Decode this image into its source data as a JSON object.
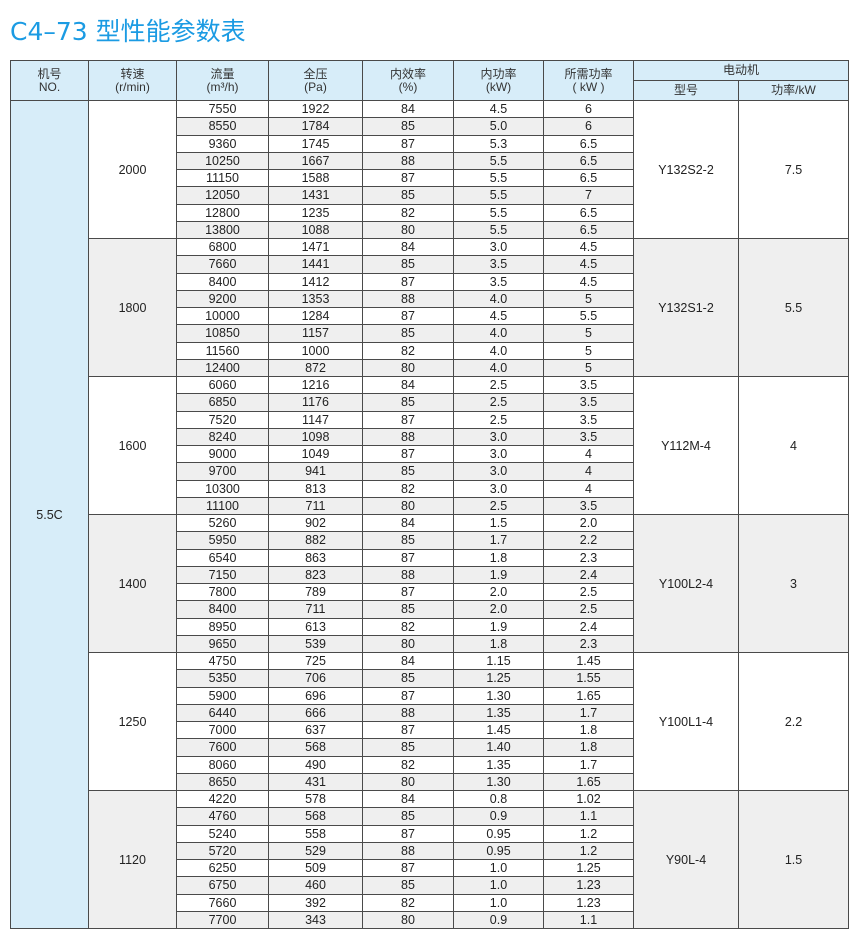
{
  "title": "C4–73 型性能参数表",
  "headers": {
    "no": [
      "机号",
      "NO."
    ],
    "speed": [
      "转速",
      "(r/min)"
    ],
    "flow": [
      "流量",
      "(m³/h)"
    ],
    "pressure": [
      "全压",
      "(Pa)"
    ],
    "efficiency": [
      "内效率",
      "(%)"
    ],
    "internal_power": [
      "内功率",
      "(kW)"
    ],
    "required_power": [
      "所需功率",
      "( kW )"
    ],
    "motor": "电动机",
    "motor_model": "型号",
    "motor_power": "功率/kW"
  },
  "machine_no": "5.5C",
  "groups": [
    {
      "speed": "2000",
      "motor_model": "Y132S2-2",
      "motor_power": "7.5",
      "rows": [
        [
          "7550",
          "1922",
          "84",
          "4.5",
          "6"
        ],
        [
          "8550",
          "1784",
          "85",
          "5.0",
          "6"
        ],
        [
          "9360",
          "1745",
          "87",
          "5.3",
          "6.5"
        ],
        [
          "10250",
          "1667",
          "88",
          "5.5",
          "6.5"
        ],
        [
          "11150",
          "1588",
          "87",
          "5.5",
          "6.5"
        ],
        [
          "12050",
          "1431",
          "85",
          "5.5",
          "7"
        ],
        [
          "12800",
          "1235",
          "82",
          "5.5",
          "6.5"
        ],
        [
          "13800",
          "1088",
          "80",
          "5.5",
          "6.5"
        ]
      ]
    },
    {
      "speed": "1800",
      "motor_model": "Y132S1-2",
      "motor_power": "5.5",
      "rows": [
        [
          "6800",
          "1471",
          "84",
          "3.0",
          "4.5"
        ],
        [
          "7660",
          "1441",
          "85",
          "3.5",
          "4.5"
        ],
        [
          "8400",
          "1412",
          "87",
          "3.5",
          "4.5"
        ],
        [
          "9200",
          "1353",
          "88",
          "4.0",
          "5"
        ],
        [
          "10000",
          "1284",
          "87",
          "4.5",
          "5.5"
        ],
        [
          "10850",
          "1157",
          "85",
          "4.0",
          "5"
        ],
        [
          "11560",
          "1000",
          "82",
          "4.0",
          "5"
        ],
        [
          "12400",
          "872",
          "80",
          "4.0",
          "5"
        ]
      ]
    },
    {
      "speed": "1600",
      "motor_model": "Y112M-4",
      "motor_power": "4",
      "rows": [
        [
          "6060",
          "1216",
          "84",
          "2.5",
          "3.5"
        ],
        [
          "6850",
          "1176",
          "85",
          "2.5",
          "3.5"
        ],
        [
          "7520",
          "1147",
          "87",
          "2.5",
          "3.5"
        ],
        [
          "8240",
          "1098",
          "88",
          "3.0",
          "3.5"
        ],
        [
          "9000",
          "1049",
          "87",
          "3.0",
          "4"
        ],
        [
          "9700",
          "941",
          "85",
          "3.0",
          "4"
        ],
        [
          "10300",
          "813",
          "82",
          "3.0",
          "4"
        ],
        [
          "11100",
          "711",
          "80",
          "2.5",
          "3.5"
        ]
      ]
    },
    {
      "speed": "1400",
      "motor_model": "Y100L2-4",
      "motor_power": "3",
      "rows": [
        [
          "5260",
          "902",
          "84",
          "1.5",
          "2.0"
        ],
        [
          "5950",
          "882",
          "85",
          "1.7",
          "2.2"
        ],
        [
          "6540",
          "863",
          "87",
          "1.8",
          "2.3"
        ],
        [
          "7150",
          "823",
          "88",
          "1.9",
          "2.4"
        ],
        [
          "7800",
          "789",
          "87",
          "2.0",
          "2.5"
        ],
        [
          "8400",
          "711",
          "85",
          "2.0",
          "2.5"
        ],
        [
          "8950",
          "613",
          "82",
          "1.9",
          "2.4"
        ],
        [
          "9650",
          "539",
          "80",
          "1.8",
          "2.3"
        ]
      ]
    },
    {
      "speed": "1250",
      "motor_model": "Y100L1-4",
      "motor_power": "2.2",
      "rows": [
        [
          "4750",
          "725",
          "84",
          "1.15",
          "1.45"
        ],
        [
          "5350",
          "706",
          "85",
          "1.25",
          "1.55"
        ],
        [
          "5900",
          "696",
          "87",
          "1.30",
          "1.65"
        ],
        [
          "6440",
          "666",
          "88",
          "1.35",
          "1.7"
        ],
        [
          "7000",
          "637",
          "87",
          "1.45",
          "1.8"
        ],
        [
          "7600",
          "568",
          "85",
          "1.40",
          "1.8"
        ],
        [
          "8060",
          "490",
          "82",
          "1.35",
          "1.7"
        ],
        [
          "8650",
          "431",
          "80",
          "1.30",
          "1.65"
        ]
      ]
    },
    {
      "speed": "1120",
      "motor_model": "Y90L-4",
      "motor_power": "1.5",
      "rows": [
        [
          "4220",
          "578",
          "84",
          "0.8",
          "1.02"
        ],
        [
          "4760",
          "568",
          "85",
          "0.9",
          "1.1"
        ],
        [
          "5240",
          "558",
          "87",
          "0.95",
          "1.2"
        ],
        [
          "5720",
          "529",
          "88",
          "0.95",
          "1.2"
        ],
        [
          "6250",
          "509",
          "87",
          "1.0",
          "1.25"
        ],
        [
          "6750",
          "460",
          "85",
          "1.0",
          "1.23"
        ],
        [
          "7660",
          "392",
          "82",
          "1.0",
          "1.23"
        ],
        [
          "7700",
          "343",
          "80",
          "0.9",
          "1.1"
        ]
      ]
    }
  ],
  "colors": {
    "title": "#1b9be3",
    "header_bg": "#d7edf9",
    "stripe": "#efefef"
  }
}
